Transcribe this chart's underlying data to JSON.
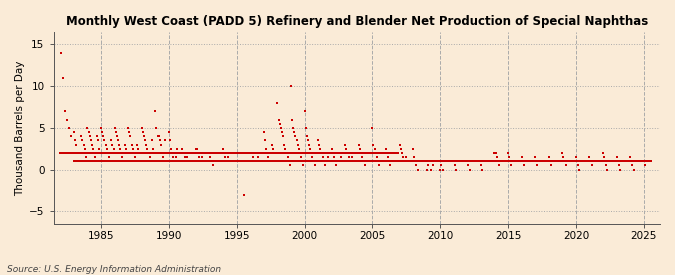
{
  "title": "Monthly West Coast (PADD 5) Refinery and Blender Net Production of Special Naphthas",
  "ylabel": "Thousand Barrels per Day",
  "source": "Source: U.S. Energy Information Administration",
  "background_color": "#faebd7",
  "dot_color": "#cc0000",
  "xlim": [
    1981.5,
    2026.2
  ],
  "ylim": [
    -6.5,
    16.5
  ],
  "yticks": [
    -5,
    0,
    5,
    10,
    15
  ],
  "xticks": [
    1985,
    1990,
    1995,
    2000,
    2005,
    2010,
    2015,
    2020,
    2025
  ],
  "data_points": [
    [
      1982.08,
      14.0
    ],
    [
      1982.17,
      11.0
    ],
    [
      1982.33,
      7.0
    ],
    [
      1982.5,
      6.0
    ],
    [
      1982.67,
      5.0
    ],
    [
      1982.75,
      4.0
    ],
    [
      1983.0,
      4.5
    ],
    [
      1983.08,
      3.5
    ],
    [
      1983.17,
      3.0
    ],
    [
      1983.25,
      2.0
    ],
    [
      1983.33,
      1.0
    ],
    [
      1983.5,
      4.0
    ],
    [
      1983.58,
      3.5
    ],
    [
      1983.67,
      2.0
    ],
    [
      1983.75,
      3.0
    ],
    [
      1983.83,
      2.5
    ],
    [
      1983.92,
      1.5
    ],
    [
      1984.0,
      5.0
    ],
    [
      1984.08,
      4.5
    ],
    [
      1984.17,
      4.0
    ],
    [
      1984.25,
      3.5
    ],
    [
      1984.33,
      3.0
    ],
    [
      1984.42,
      2.5
    ],
    [
      1984.5,
      2.0
    ],
    [
      1984.58,
      1.5
    ],
    [
      1984.67,
      4.0
    ],
    [
      1984.75,
      3.5
    ],
    [
      1984.83,
      2.5
    ],
    [
      1984.92,
      1.0
    ],
    [
      1985.0,
      5.0
    ],
    [
      1985.08,
      4.5
    ],
    [
      1985.17,
      4.0
    ],
    [
      1985.25,
      3.5
    ],
    [
      1985.33,
      3.0
    ],
    [
      1985.42,
      2.5
    ],
    [
      1985.5,
      2.0
    ],
    [
      1985.58,
      1.5
    ],
    [
      1985.67,
      1.0
    ],
    [
      1985.75,
      3.5
    ],
    [
      1985.83,
      3.0
    ],
    [
      1985.92,
      2.5
    ],
    [
      1986.0,
      5.0
    ],
    [
      1986.08,
      4.5
    ],
    [
      1986.17,
      4.0
    ],
    [
      1986.25,
      3.5
    ],
    [
      1986.33,
      3.0
    ],
    [
      1986.42,
      2.5
    ],
    [
      1986.5,
      2.0
    ],
    [
      1986.58,
      1.5
    ],
    [
      1986.67,
      1.0
    ],
    [
      1986.75,
      3.0
    ],
    [
      1986.83,
      2.5
    ],
    [
      1986.92,
      2.0
    ],
    [
      1987.0,
      5.0
    ],
    [
      1987.08,
      4.5
    ],
    [
      1987.17,
      4.0
    ],
    [
      1987.25,
      3.0
    ],
    [
      1987.33,
      2.5
    ],
    [
      1987.42,
      2.0
    ],
    [
      1987.5,
      1.5
    ],
    [
      1987.58,
      1.0
    ],
    [
      1987.67,
      3.0
    ],
    [
      1987.75,
      2.5
    ],
    [
      1987.83,
      2.0
    ],
    [
      1988.0,
      5.0
    ],
    [
      1988.08,
      4.5
    ],
    [
      1988.17,
      4.0
    ],
    [
      1988.25,
      3.5
    ],
    [
      1988.33,
      3.0
    ],
    [
      1988.42,
      2.5
    ],
    [
      1988.5,
      2.0
    ],
    [
      1988.58,
      1.5
    ],
    [
      1988.67,
      1.0
    ],
    [
      1988.75,
      3.5
    ],
    [
      1988.83,
      2.5
    ],
    [
      1989.0,
      7.0
    ],
    [
      1989.08,
      5.0
    ],
    [
      1989.17,
      4.0
    ],
    [
      1989.25,
      4.0
    ],
    [
      1989.33,
      3.5
    ],
    [
      1989.42,
      3.0
    ],
    [
      1989.5,
      2.0
    ],
    [
      1989.58,
      1.5
    ],
    [
      1989.67,
      1.0
    ],
    [
      1989.75,
      3.5
    ],
    [
      1990.0,
      4.5
    ],
    [
      1990.08,
      3.5
    ],
    [
      1990.17,
      2.5
    ],
    [
      1990.25,
      2.0
    ],
    [
      1990.33,
      1.5
    ],
    [
      1990.42,
      1.0
    ],
    [
      1990.5,
      1.5
    ],
    [
      1990.58,
      2.5
    ],
    [
      1991.0,
      2.5
    ],
    [
      1991.08,
      2.0
    ],
    [
      1991.17,
      1.5
    ],
    [
      1991.25,
      1.0
    ],
    [
      1991.33,
      1.5
    ],
    [
      1991.42,
      2.0
    ],
    [
      1992.0,
      2.5
    ],
    [
      1992.08,
      2.5
    ],
    [
      1992.17,
      2.0
    ],
    [
      1992.25,
      1.5
    ],
    [
      1992.33,
      1.0
    ],
    [
      1992.42,
      1.5
    ],
    [
      1993.0,
      1.5
    ],
    [
      1993.08,
      1.0
    ],
    [
      1993.17,
      1.0
    ],
    [
      1993.25,
      0.5
    ],
    [
      1993.33,
      1.0
    ],
    [
      1994.0,
      2.5
    ],
    [
      1994.08,
      2.0
    ],
    [
      1994.17,
      1.5
    ],
    [
      1994.25,
      1.0
    ],
    [
      1994.33,
      1.5
    ],
    [
      1994.5,
      1.0
    ],
    [
      1995.0,
      1.0
    ],
    [
      1995.08,
      1.0
    ],
    [
      1995.17,
      1.0
    ],
    [
      1995.5,
      -3.0
    ],
    [
      1996.0,
      2.0
    ],
    [
      1996.08,
      2.0
    ],
    [
      1996.17,
      1.5
    ],
    [
      1996.25,
      1.0
    ],
    [
      1996.33,
      1.0
    ],
    [
      1996.5,
      2.0
    ],
    [
      1996.58,
      1.5
    ],
    [
      1996.67,
      1.0
    ],
    [
      1997.0,
      4.5
    ],
    [
      1997.08,
      3.5
    ],
    [
      1997.17,
      2.5
    ],
    [
      1997.25,
      2.0
    ],
    [
      1997.33,
      1.5
    ],
    [
      1997.42,
      1.0
    ],
    [
      1997.5,
      2.0
    ],
    [
      1997.58,
      3.0
    ],
    [
      1997.67,
      2.5
    ],
    [
      1997.75,
      2.0
    ],
    [
      1997.83,
      1.0
    ],
    [
      1998.0,
      8.0
    ],
    [
      1998.08,
      6.0
    ],
    [
      1998.17,
      5.5
    ],
    [
      1998.25,
      5.0
    ],
    [
      1998.33,
      4.5
    ],
    [
      1998.42,
      4.0
    ],
    [
      1998.5,
      3.0
    ],
    [
      1998.58,
      2.5
    ],
    [
      1998.67,
      2.0
    ],
    [
      1998.75,
      1.5
    ],
    [
      1998.83,
      1.0
    ],
    [
      1998.92,
      0.5
    ],
    [
      1999.0,
      10.0
    ],
    [
      1999.08,
      6.0
    ],
    [
      1999.17,
      5.0
    ],
    [
      1999.25,
      4.5
    ],
    [
      1999.33,
      4.0
    ],
    [
      1999.42,
      3.5
    ],
    [
      1999.5,
      3.0
    ],
    [
      1999.58,
      2.5
    ],
    [
      1999.67,
      2.0
    ],
    [
      1999.75,
      1.5
    ],
    [
      1999.83,
      1.0
    ],
    [
      1999.92,
      0.5
    ],
    [
      2000.0,
      7.0
    ],
    [
      2000.08,
      5.0
    ],
    [
      2000.17,
      4.0
    ],
    [
      2000.25,
      3.5
    ],
    [
      2000.33,
      3.0
    ],
    [
      2000.42,
      2.5
    ],
    [
      2000.5,
      2.0
    ],
    [
      2000.58,
      1.5
    ],
    [
      2000.67,
      1.0
    ],
    [
      2000.75,
      0.5
    ],
    [
      2000.83,
      1.0
    ],
    [
      2001.0,
      3.5
    ],
    [
      2001.08,
      3.0
    ],
    [
      2001.17,
      2.5
    ],
    [
      2001.25,
      2.0
    ],
    [
      2001.33,
      1.5
    ],
    [
      2001.42,
      1.0
    ],
    [
      2001.5,
      0.5
    ],
    [
      2001.67,
      2.0
    ],
    [
      2001.75,
      1.5
    ],
    [
      2001.83,
      1.0
    ],
    [
      2002.0,
      2.5
    ],
    [
      2002.08,
      2.0
    ],
    [
      2002.17,
      1.5
    ],
    [
      2002.25,
      1.0
    ],
    [
      2002.33,
      0.5
    ],
    [
      2002.5,
      1.0
    ],
    [
      2002.67,
      1.5
    ],
    [
      2003.0,
      3.0
    ],
    [
      2003.08,
      2.5
    ],
    [
      2003.17,
      2.0
    ],
    [
      2003.25,
      1.5
    ],
    [
      2003.33,
      1.0
    ],
    [
      2003.5,
      1.5
    ],
    [
      2003.67,
      1.0
    ],
    [
      2004.0,
      3.0
    ],
    [
      2004.08,
      2.5
    ],
    [
      2004.17,
      2.0
    ],
    [
      2004.25,
      1.5
    ],
    [
      2004.33,
      1.0
    ],
    [
      2004.42,
      0.5
    ],
    [
      2004.5,
      1.0
    ],
    [
      2005.0,
      5.0
    ],
    [
      2005.08,
      3.0
    ],
    [
      2005.17,
      2.5
    ],
    [
      2005.25,
      2.0
    ],
    [
      2005.33,
      1.5
    ],
    [
      2005.42,
      1.0
    ],
    [
      2005.5,
      0.5
    ],
    [
      2006.0,
      2.5
    ],
    [
      2006.08,
      2.0
    ],
    [
      2006.17,
      1.5
    ],
    [
      2006.25,
      1.0
    ],
    [
      2006.33,
      0.5
    ],
    [
      2006.5,
      1.0
    ],
    [
      2007.0,
      3.0
    ],
    [
      2007.08,
      2.5
    ],
    [
      2007.17,
      2.0
    ],
    [
      2007.25,
      1.5
    ],
    [
      2007.33,
      1.0
    ],
    [
      2007.5,
      1.5
    ],
    [
      2008.0,
      2.5
    ],
    [
      2008.08,
      1.5
    ],
    [
      2008.17,
      1.0
    ],
    [
      2008.25,
      0.5
    ],
    [
      2008.33,
      0.0
    ],
    [
      2008.5,
      1.0
    ],
    [
      2009.0,
      0.0
    ],
    [
      2009.08,
      0.5
    ],
    [
      2009.17,
      1.0
    ],
    [
      2009.33,
      0.0
    ],
    [
      2009.5,
      0.5
    ],
    [
      2010.0,
      0.0
    ],
    [
      2010.08,
      0.5
    ],
    [
      2010.17,
      0.0
    ],
    [
      2011.0,
      1.0
    ],
    [
      2011.08,
      0.5
    ],
    [
      2011.17,
      0.0
    ],
    [
      2012.0,
      1.0
    ],
    [
      2012.08,
      0.5
    ],
    [
      2012.17,
      0.0
    ],
    [
      2013.0,
      0.5
    ],
    [
      2013.08,
      0.0
    ],
    [
      2014.0,
      2.0
    ],
    [
      2014.08,
      2.0
    ],
    [
      2014.17,
      1.5
    ],
    [
      2014.25,
      1.0
    ],
    [
      2014.33,
      0.5
    ],
    [
      2015.0,
      2.0
    ],
    [
      2015.08,
      1.5
    ],
    [
      2015.17,
      1.0
    ],
    [
      2015.25,
      0.5
    ],
    [
      2016.0,
      1.5
    ],
    [
      2016.08,
      1.0
    ],
    [
      2016.17,
      0.5
    ],
    [
      2017.0,
      1.5
    ],
    [
      2017.08,
      1.0
    ],
    [
      2017.17,
      0.5
    ],
    [
      2018.0,
      1.5
    ],
    [
      2018.08,
      1.0
    ],
    [
      2018.17,
      0.5
    ],
    [
      2019.0,
      2.0
    ],
    [
      2019.08,
      1.5
    ],
    [
      2019.17,
      1.0
    ],
    [
      2019.25,
      0.5
    ],
    [
      2020.0,
      1.5
    ],
    [
      2020.08,
      1.0
    ],
    [
      2020.17,
      0.5
    ],
    [
      2020.25,
      0.0
    ],
    [
      2021.0,
      1.5
    ],
    [
      2021.08,
      1.0
    ],
    [
      2021.17,
      0.5
    ],
    [
      2022.0,
      2.0
    ],
    [
      2022.08,
      1.5
    ],
    [
      2022.17,
      1.0
    ],
    [
      2022.25,
      0.5
    ],
    [
      2022.33,
      0.0
    ],
    [
      2023.0,
      1.5
    ],
    [
      2023.08,
      1.0
    ],
    [
      2023.17,
      0.5
    ],
    [
      2023.25,
      0.0
    ],
    [
      2024.0,
      1.5
    ],
    [
      2024.08,
      1.0
    ],
    [
      2024.17,
      0.5
    ],
    [
      2024.25,
      0.0
    ],
    [
      2025.0,
      1.0
    ],
    [
      2025.08,
      0.5
    ]
  ],
  "monthly_band": {
    "x_start": 1996.5,
    "x_end": 2025.5,
    "y_values": [
      1.0,
      2.0
    ]
  }
}
